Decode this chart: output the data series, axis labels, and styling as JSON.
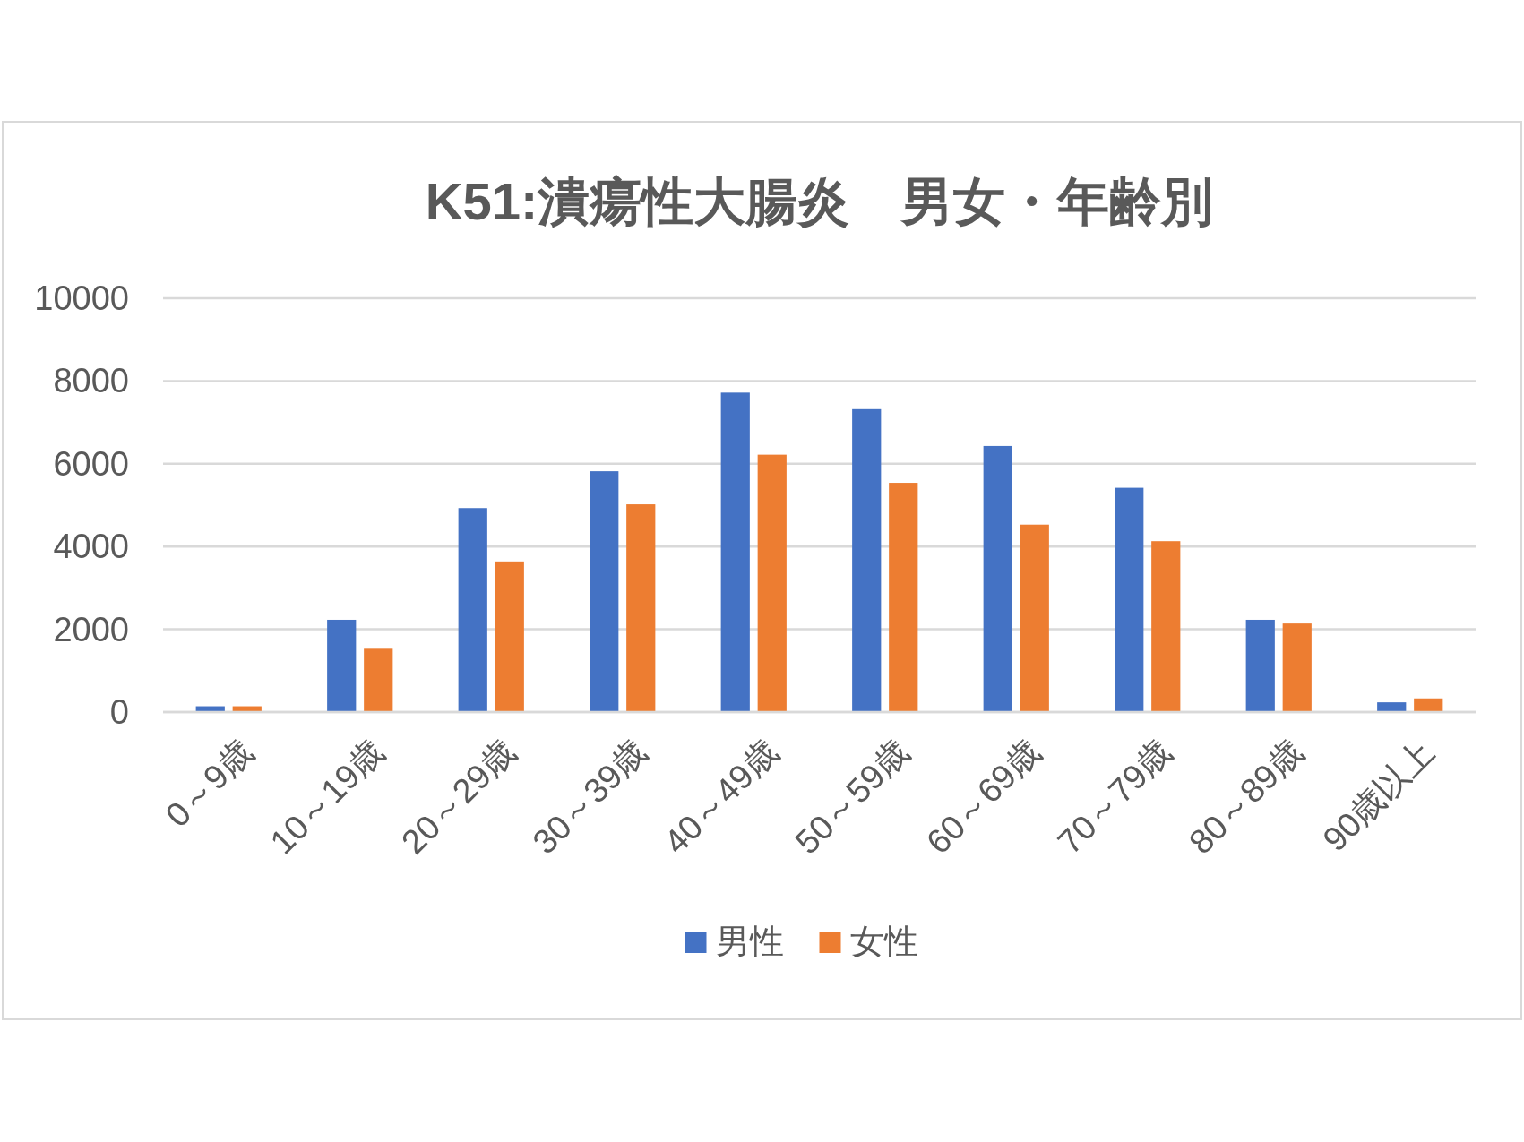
{
  "chart_data": {
    "type": "bar",
    "title": "K51:潰瘍性大腸炎　男女・年齢別",
    "categories": [
      "0～9歳",
      "10～19歳",
      "20～29歳",
      "30～39歳",
      "40～49歳",
      "50～59歳",
      "60～69歳",
      "70～79歳",
      "80～89歳",
      "90歳以上"
    ],
    "series": [
      {
        "name": "男性",
        "color": "#4472c4",
        "values": [
          140,
          2230,
          4930,
          5820,
          7720,
          7320,
          6430,
          5420,
          2230,
          235
        ]
      },
      {
        "name": "女性",
        "color": "#ed7d31",
        "values": [
          140,
          1530,
          3640,
          5020,
          6220,
          5540,
          4530,
          4130,
          2140,
          330
        ]
      }
    ],
    "ylim": [
      0,
      10000
    ],
    "yticks": [
      0,
      2000,
      4000,
      6000,
      8000,
      10000
    ],
    "grid": "y",
    "legend": "bottom"
  }
}
